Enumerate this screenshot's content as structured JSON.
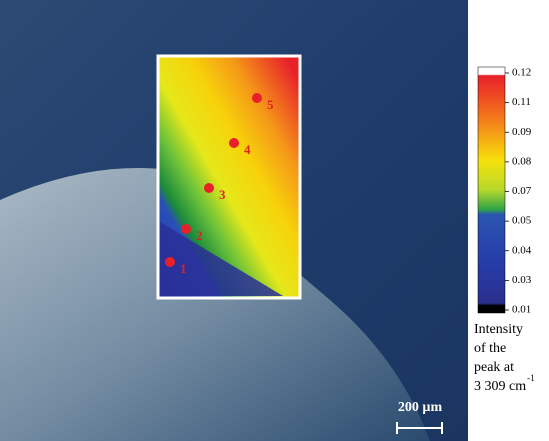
{
  "colorbar": {
    "ticks": [
      0.12,
      0.11,
      0.09,
      0.08,
      0.07,
      0.05,
      0.04,
      0.03,
      0.01
    ],
    "label_lines": [
      "Intensity",
      "of the",
      "peak at",
      "3 309 cm"
    ],
    "label_sup": "-1"
  },
  "points": [
    {
      "label": "1"
    },
    {
      "label": "2"
    },
    {
      "label": "3"
    },
    {
      "label": "4"
    },
    {
      "label": "5"
    }
  ],
  "scale_bar": "200 µm"
}
